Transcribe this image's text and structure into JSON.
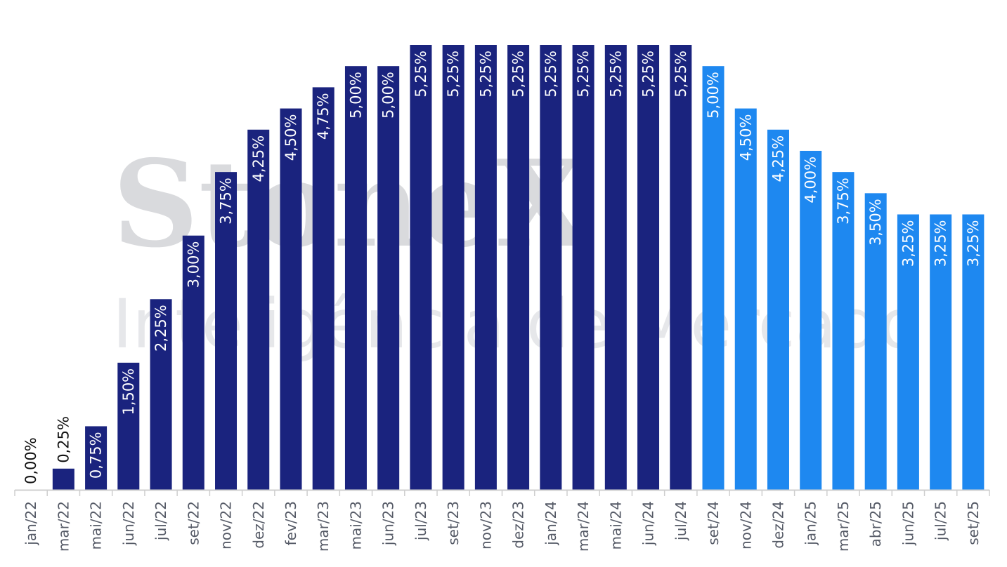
{
  "chart_data": {
    "type": "bar",
    "title": "",
    "xlabel": "",
    "ylabel": "",
    "ylim": [
      0,
      5.25
    ],
    "grid": false,
    "legend": "none",
    "categories": [
      "jan/22",
      "mar/22",
      "mai/22",
      "jun/22",
      "jul/22",
      "set/22",
      "nov/22",
      "dez/22",
      "fev/23",
      "mar/23",
      "mai/23",
      "jun/23",
      "jul/23",
      "set/23",
      "nov/23",
      "dez/23",
      "jan/24",
      "mar/24",
      "mai/24",
      "jun/24",
      "jul/24",
      "set/24",
      "nov/24",
      "dez/24",
      "jan/25",
      "mar/25",
      "abr/25",
      "jun/25",
      "jul/25",
      "set/25"
    ],
    "values": [
      0.0,
      0.25,
      0.75,
      1.5,
      2.25,
      3.0,
      3.75,
      4.25,
      4.5,
      4.75,
      5.0,
      5.0,
      5.25,
      5.25,
      5.25,
      5.25,
      5.25,
      5.25,
      5.25,
      5.25,
      5.25,
      5.0,
      4.5,
      4.25,
      4.0,
      3.75,
      3.5,
      3.25,
      3.25,
      3.25
    ],
    "labels": [
      "0,00%",
      "0,25%",
      "0,75%",
      "1,50%",
      "2,25%",
      "3,00%",
      "3,75%",
      "4,25%",
      "4,50%",
      "4,75%",
      "5,00%",
      "5,00%",
      "5,25%",
      "5,25%",
      "5,25%",
      "5,25%",
      "5,25%",
      "5,25%",
      "5,25%",
      "5,25%",
      "5,25%",
      "5,00%",
      "4,50%",
      "4,25%",
      "4,00%",
      "3,75%",
      "3,50%",
      "3,25%",
      "3,25%",
      "3,25%"
    ],
    "bar_colors": [
      "#1a237e",
      "#1a237e",
      "#1a237e",
      "#1a237e",
      "#1a237e",
      "#1a237e",
      "#1a237e",
      "#1a237e",
      "#1a237e",
      "#1a237e",
      "#1a237e",
      "#1a237e",
      "#1a237e",
      "#1a237e",
      "#1a237e",
      "#1a237e",
      "#1a237e",
      "#1a237e",
      "#1a237e",
      "#1a237e",
      "#1a237e",
      "#1e88f0",
      "#1e88f0",
      "#1e88f0",
      "#1e88f0",
      "#1e88f0",
      "#1e88f0",
      "#1e88f0",
      "#1e88f0",
      "#1e88f0"
    ]
  },
  "watermark": {
    "logo": "StoneX",
    "subtitle": "Inteligência de Mercado"
  },
  "colors": {
    "historical": "#1a237e",
    "projection": "#1e88f0",
    "axis": "#cfcfcf",
    "tick_text": "#555a66"
  }
}
